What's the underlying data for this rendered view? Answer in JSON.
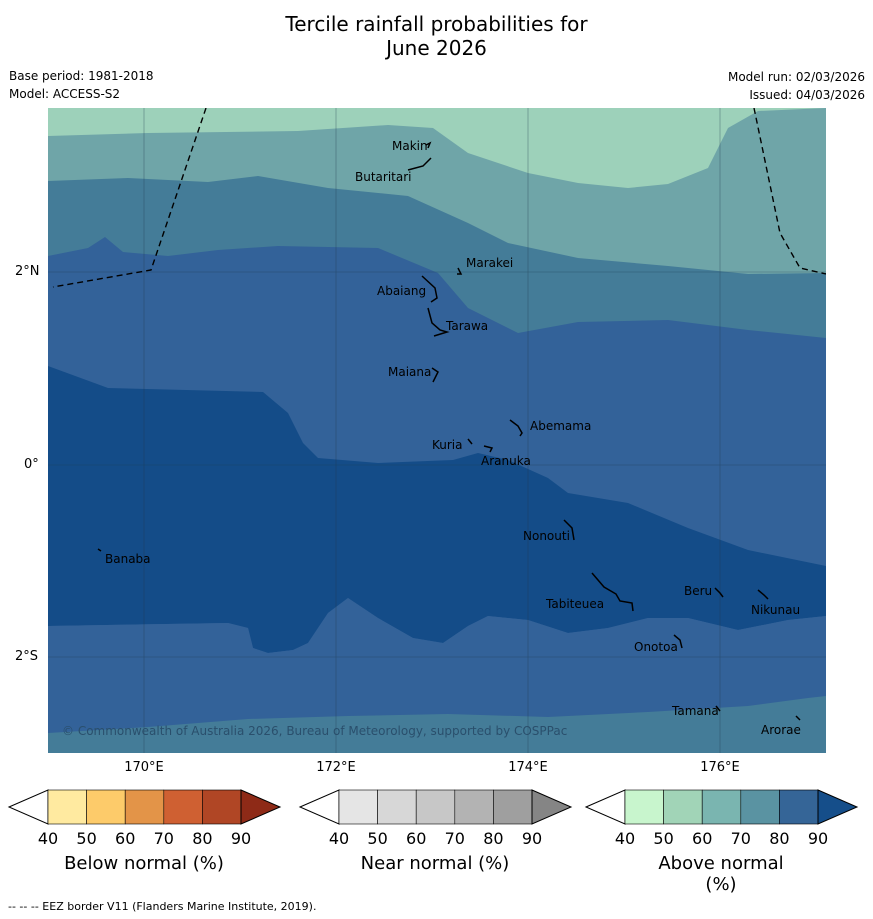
{
  "title_line1": "Tercile rainfall probabilities for",
  "title_line2": "June 2026",
  "base_period": "Base period: 1981-2018",
  "model": "Model: ACCESS-S2",
  "model_run": "Model run: 02/03/2026",
  "issued": "Issued: 04/03/2026",
  "copyright": "© Commonwealth of Australia 2026, Bureau of Meteorology, supported by COSPPac",
  "lon_labels": [
    "170°E",
    "172°E",
    "174°E",
    "176°E"
  ],
  "lat_labels": [
    "2°N",
    "0°",
    "2°S"
  ],
  "islands": [
    "Makin",
    "Butaritari",
    "Marakei",
    "Abaiang",
    "Tarawa",
    "Maiana",
    "Abemama",
    "Kuria",
    "Aranuka",
    "Nonouti",
    "Banaba",
    "Beru",
    "Tabiteuea",
    "Nikunau",
    "Onotoa",
    "Tamana",
    "Arorae"
  ],
  "colorbars": {
    "below": {
      "label": "Below normal (%)",
      "ticks": [
        "40",
        "50",
        "60",
        "70",
        "80",
        "90"
      ],
      "colors": [
        "#ffffff",
        "#ffeaa0",
        "#fdcb6a",
        "#e39448",
        "#cf6032",
        "#b04625",
        "#8e2a17"
      ]
    },
    "near": {
      "label": "Near normal (%)",
      "ticks": [
        "40",
        "50",
        "60",
        "70",
        "80",
        "90"
      ],
      "colors": [
        "#ffffff",
        "#e5e5e5",
        "#d7d7d7",
        "#c7c7c7",
        "#b3b3b3",
        "#9f9f9f",
        "#858585"
      ]
    },
    "above": {
      "label": "Above normal (%)",
      "ticks": [
        "40",
        "50",
        "60",
        "70",
        "80",
        "90"
      ],
      "colors": [
        "#ffffff",
        "#c8f5cd",
        "#a1d4b7",
        "#7ab5b0",
        "#5a93a2",
        "#356597",
        "#154e8a"
      ]
    }
  },
  "footer": "-- -- -- EEZ border V11 (Flanders Marine Institute, 2019)."
}
